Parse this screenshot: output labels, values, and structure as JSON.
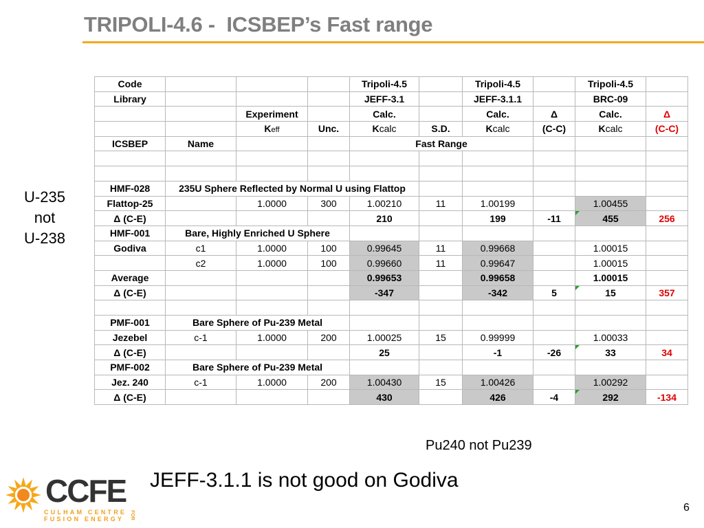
{
  "title": "TRIPOLI-4.6 -  ICSBEP’s Fast range",
  "side_note": [
    "U-235",
    "not",
    "U-238"
  ],
  "colors": {
    "title": "#7f7f7f",
    "rule": "#f5a81c",
    "grey_cell": "#c9c9c9",
    "red": "#e00000",
    "marker": "#2aa02a"
  },
  "table": {
    "header": {
      "code_label": "Code",
      "code_1": "Tripoli-4.5",
      "code_2": "Tripoli-4.5",
      "code_3": "Tripoli-4.5",
      "library_label": "Library",
      "lib_1": "JEFF-3.1",
      "lib_2": "JEFF-3.1.1",
      "lib_3": "BRC-09",
      "experiment": "Experiment",
      "calc_1": "Calc.",
      "calc_2": "Calc.",
      "delta_1": "Δ",
      "calc_3": "Calc.",
      "delta_2": "Δ",
      "k_main": "K",
      "k_eff_sub": "eff",
      "unc": "Unc.",
      "k_main_2": "K",
      "calc_sub_1": "calc",
      "sd": "S.D.",
      "k_main_3": "K",
      "calc_sub_2": "calc",
      "cc_1": "(C-C)",
      "k_main_4": "K",
      "calc_sub_3": "calc",
      "cc_2": "(C-C)",
      "icsbep": "ICSBEP",
      "name": "Name",
      "fast_range": "Fast Range"
    },
    "hmf028": {
      "id": "HMF-028",
      "desc": "235U Sphere Reflected by Normal U using Flattop",
      "row": {
        "label": "Flattop-25",
        "case": "",
        "exp": "1.0000",
        "unc": "300",
        "c1": "1.00210",
        "sd": "11",
        "c2": "1.00199",
        "d1": "",
        "c3": "1.00455",
        "d2": ""
      },
      "delta": {
        "label": "Δ (C-E)",
        "c1": "210",
        "c2": "199",
        "d1": "-11",
        "c3": "455",
        "d2": "256"
      }
    },
    "hmf001": {
      "id": "HMF-001",
      "desc": "Bare, Highly Enriched U Sphere",
      "rows": [
        {
          "label": "Godiva",
          "case": "c1",
          "exp": "1.0000",
          "unc": "100",
          "c1": "0.99645",
          "sd": "11",
          "c2": "0.99668",
          "c3": "1.00015"
        },
        {
          "label": "",
          "case": "c2",
          "exp": "1.0000",
          "unc": "100",
          "c1": "0.99660",
          "sd": "11",
          "c2": "0.99647",
          "c3": "1.00015"
        }
      ],
      "average": {
        "label": "Average",
        "c1": "0.99653",
        "c2": "0.99658",
        "c3": "1.00015"
      },
      "delta": {
        "label": "Δ (C-E)",
        "c1": "-347",
        "c2": "-342",
        "d1": "5",
        "c3": "15",
        "d2": "357"
      }
    },
    "pmf001": {
      "id": "PMF-001",
      "desc": "Bare Sphere of Pu-239 Metal",
      "row": {
        "label": "Jezebel",
        "case": "c-1",
        "exp": "1.0000",
        "unc": "200",
        "c1": "1.00025",
        "sd": "15",
        "c2": "0.99999",
        "c3": "1.00033"
      },
      "delta": {
        "label": "Δ (C-E)",
        "c1": "25",
        "c2": "-1",
        "d1": "-26",
        "c3": "33",
        "d2": "34"
      }
    },
    "pmf002": {
      "id": "PMF-002",
      "desc": "Bare Sphere of Pu-239 Metal",
      "row": {
        "label": "Jez. 240",
        "case": "c-1",
        "exp": "1.0000",
        "unc": "200",
        "c1": "1.00430",
        "sd": "15",
        "c2": "1.00426",
        "c3": "1.00292"
      },
      "delta": {
        "label": "Δ (C-E)",
        "c1": "430",
        "c2": "426",
        "d1": "-4",
        "c3": "292",
        "d2": "-134"
      }
    }
  },
  "notes": {
    "pu240": "Pu240 not Pu239",
    "jeff": "JEFF-3.1.1 is not good on Godiva"
  },
  "page_number": "6",
  "logo": {
    "text": "CCFE",
    "line1": "CULHAM CENTRE",
    "line2": "FUSION ENERGY",
    "for": "FOR"
  }
}
